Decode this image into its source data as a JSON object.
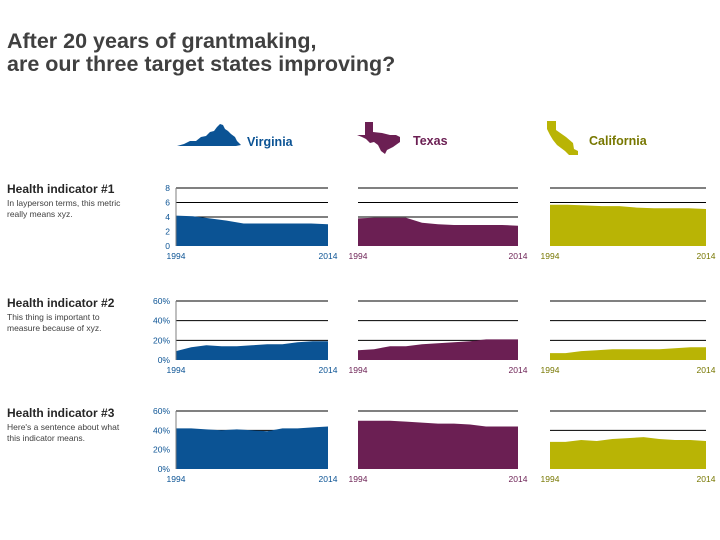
{
  "title_lines": [
    "After 20 years of grantmaking,",
    "are our three target states improving?"
  ],
  "states": [
    {
      "name": "Virginia",
      "color": "#0b5394",
      "icon": "virginia-map-icon"
    },
    {
      "name": "Texas",
      "color": "#6b1f53",
      "icon": "texas-map-icon"
    },
    {
      "name": "California",
      "color": "#b9b405",
      "icon": "california-map-icon"
    }
  ],
  "indicators": [
    {
      "title": "Health indicator #1",
      "description": "In layperson terms, this metric really means xyz."
    },
    {
      "title": "Health indicator #2",
      "description": "This thing is important to measure because of xyz."
    },
    {
      "title": "Health indicator #3",
      "description": "Here's a sentence about what this indicator means."
    }
  ],
  "chart_data": [
    {
      "type": "area",
      "row": 1,
      "state": "Virginia",
      "x_start": "1994",
      "x_end": "2014",
      "ylim": [
        0,
        8
      ],
      "y_ticks": [
        "0",
        "2",
        "4",
        "6",
        "8"
      ],
      "grid": true,
      "values": [
        4.2,
        4.1,
        3.8,
        3.5,
        3.1,
        3.1,
        3.1,
        3.1,
        3.1,
        3.0
      ]
    },
    {
      "type": "area",
      "row": 1,
      "state": "Texas",
      "x_start": "1994",
      "x_end": "2014",
      "ylim": [
        0,
        8
      ],
      "grid": true,
      "values": [
        3.8,
        3.9,
        3.9,
        3.9,
        3.2,
        3.0,
        2.9,
        2.9,
        2.9,
        2.9,
        2.8
      ]
    },
    {
      "type": "area",
      "row": 1,
      "state": "California",
      "x_start": "1994",
      "x_end": "2014",
      "ylim": [
        0,
        8
      ],
      "grid": true,
      "values": [
        5.7,
        5.7,
        5.6,
        5.5,
        5.5,
        5.3,
        5.2,
        5.2,
        5.2,
        5.1
      ]
    },
    {
      "type": "area",
      "row": 2,
      "state": "Virginia",
      "x_start": "1994",
      "x_end": "2014",
      "ylim": [
        0,
        60
      ],
      "y_ticks": [
        "0%",
        "20%",
        "40%",
        "60%"
      ],
      "grid": true,
      "values": [
        9,
        13,
        15,
        14,
        14,
        15,
        16,
        16,
        18,
        19,
        19
      ]
    },
    {
      "type": "area",
      "row": 2,
      "state": "Texas",
      "x_start": "1994",
      "x_end": "2014",
      "ylim": [
        0,
        60
      ],
      "grid": true,
      "values": [
        10,
        11,
        14,
        14,
        16,
        17,
        18,
        19,
        21,
        21,
        21
      ]
    },
    {
      "type": "area",
      "row": 2,
      "state": "California",
      "x_start": "1994",
      "x_end": "2014",
      "ylim": [
        0,
        60
      ],
      "grid": true,
      "values": [
        7,
        7,
        9,
        10,
        11,
        11,
        11,
        11,
        12,
        13,
        13
      ]
    },
    {
      "type": "area",
      "row": 3,
      "state": "Virginia",
      "x_start": "1994",
      "x_end": "2014",
      "ylim": [
        0,
        60
      ],
      "y_ticks": [
        "0%",
        "20%",
        "40%",
        "60%"
      ],
      "grid": true,
      "values": [
        42,
        42,
        41,
        40,
        41,
        40,
        39,
        42,
        42,
        43,
        44
      ]
    },
    {
      "type": "area",
      "row": 3,
      "state": "Texas",
      "x_start": "1994",
      "x_end": "2014",
      "ylim": [
        0,
        60
      ],
      "grid": true,
      "values": [
        50,
        50,
        50,
        49,
        48,
        47,
        47,
        46,
        44,
        44,
        44
      ]
    },
    {
      "type": "area",
      "row": 3,
      "state": "California",
      "x_start": "1994",
      "x_end": "2014",
      "ylim": [
        0,
        60
      ],
      "grid": true,
      "values": [
        28,
        28,
        30,
        29,
        31,
        32,
        33,
        31,
        30,
        30,
        29
      ]
    }
  ]
}
